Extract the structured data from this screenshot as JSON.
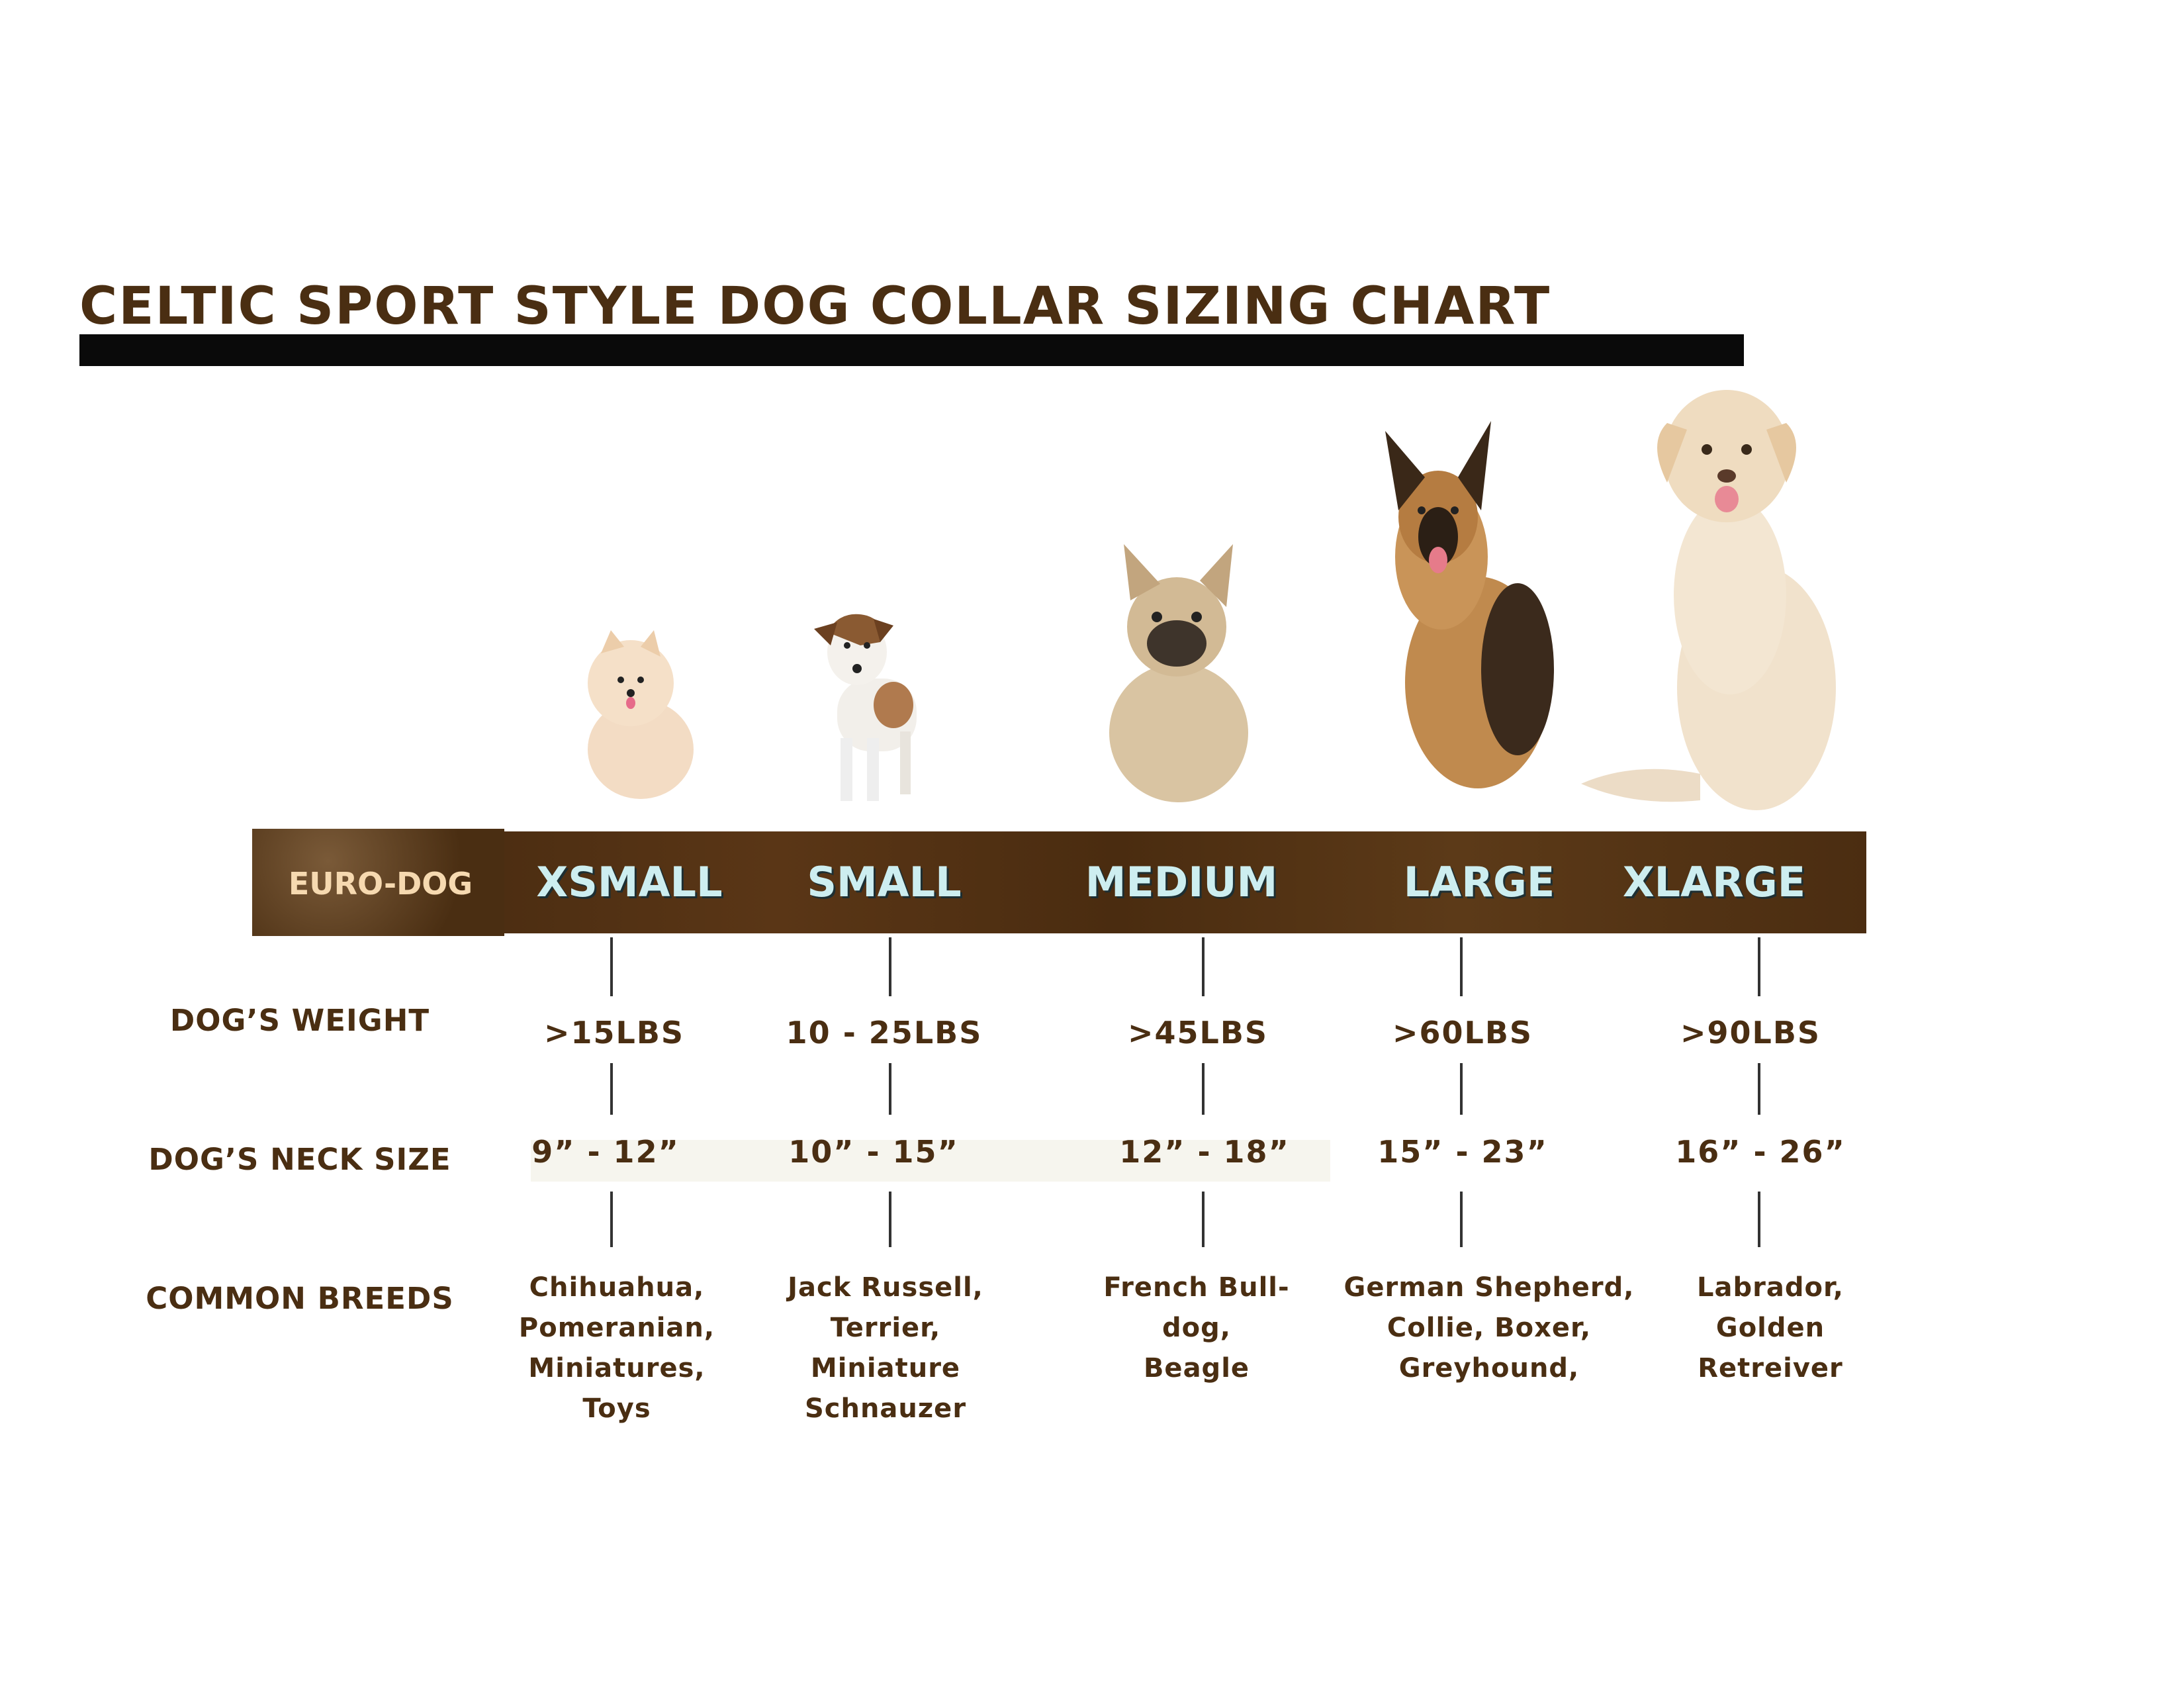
{
  "title": "CELTIC SPORT STYLE DOG COLLAR SIZING CHART",
  "band": {
    "brand": "EURO-DOG",
    "sizes": [
      {
        "prefix": "X",
        "label": "SMALL"
      },
      {
        "prefix": "",
        "label": "SMALL"
      },
      {
        "prefix": "",
        "label": "MEDIUM"
      },
      {
        "prefix": "",
        "label": "LARGE"
      },
      {
        "prefix": "X",
        "label": "LARGE"
      }
    ],
    "colors": {
      "band": "#4d2e12",
      "size_text": "#cdeef0",
      "brand_text": "#f6d9b0"
    }
  },
  "rows": {
    "weight": {
      "label": "DOG’S WEIGHT",
      "values": [
        ">15LBS",
        "10 - 25LBS",
        ">45LBS",
        ">60LBS",
        ">90LBS"
      ]
    },
    "neck": {
      "label": "DOG’S NECK SIZE",
      "values": [
        "9” - 12”",
        "10” - 15”",
        "12” - 18”",
        "15” - 23”",
        "16” - 26”"
      ]
    },
    "breeds": {
      "label": "COMMON BREEDS",
      "values": [
        [
          "Chihuahua,",
          "Pomeranian,",
          "Miniatures,",
          "Toys"
        ],
        [
          "Jack Russell,",
          "Terrier,",
          "Miniature",
          "Schnauzer"
        ],
        [
          "French Bull-",
          "dog,",
          "Beagle"
        ],
        [
          "German Shepherd,",
          "Collie, Boxer,",
          "Greyhound,"
        ],
        [
          "Labrador,",
          "Golden",
          "Retreiver"
        ]
      ]
    }
  },
  "dogs": [
    "pomeranian-photo",
    "jack-russell-photo",
    "french-bulldog-photo",
    "german-shepherd-photo",
    "labrador-photo"
  ],
  "text_color": "#4a2e12"
}
